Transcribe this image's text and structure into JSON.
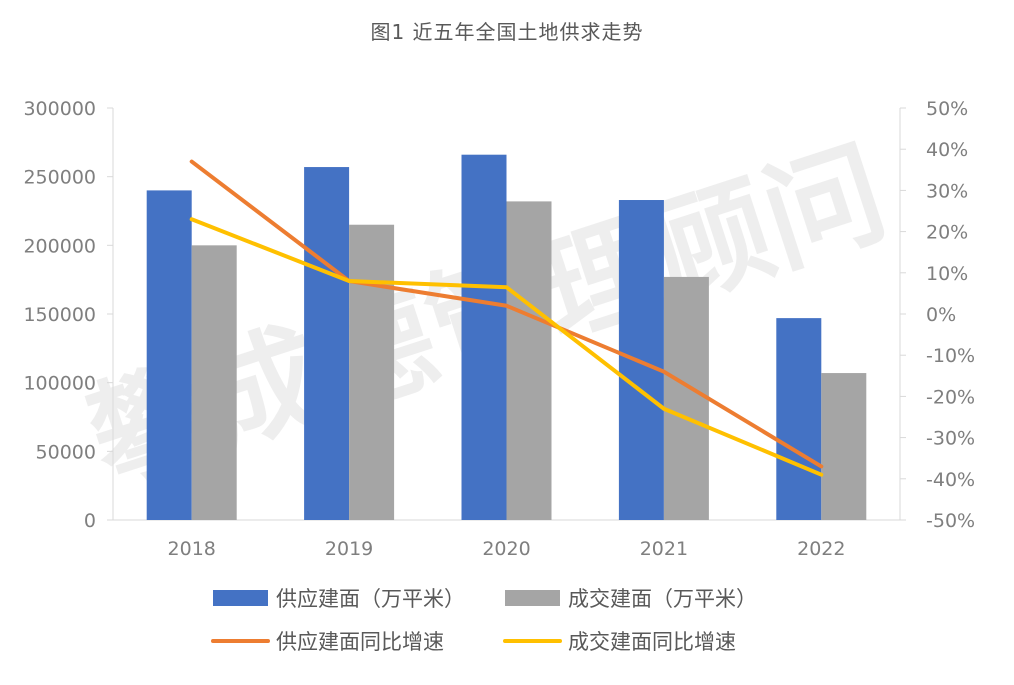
{
  "chart_data": {
    "type": "bar",
    "title": "图1 近五年全国土地供求走势",
    "categories": [
      "2018",
      "2019",
      "2020",
      "2021",
      "2022"
    ],
    "series": [
      {
        "name": "供应建面（万平米）",
        "kind": "bar",
        "axis": "left",
        "color": "#4472C4",
        "values": [
          240000,
          257000,
          266000,
          233000,
          147000
        ]
      },
      {
        "name": "成交建面（万平米）",
        "kind": "bar",
        "axis": "left",
        "color": "#A5A5A5",
        "values": [
          200000,
          215000,
          232000,
          177000,
          107000
        ]
      },
      {
        "name": "供应建面同比增速",
        "kind": "line",
        "axis": "right",
        "color": "#ED7D31",
        "values": [
          0.37,
          0.08,
          0.02,
          -0.14,
          -0.37
        ]
      },
      {
        "name": "成交建面同比增速",
        "kind": "line",
        "axis": "right",
        "color": "#FFC000",
        "values": [
          0.23,
          0.08,
          0.065,
          -0.23,
          -0.39
        ]
      }
    ],
    "left_axis": {
      "ylim": [
        0,
        300000
      ],
      "ticks": [
        "0",
        "50000",
        "100000",
        "150000",
        "200000",
        "250000",
        "300000"
      ]
    },
    "right_axis": {
      "ylim": [
        -0.5,
        0.5
      ],
      "ticks": [
        "-50%",
        "-40%",
        "-30%",
        "-20%",
        "-10%",
        "0%",
        "10%",
        "20%",
        "30%",
        "40%",
        "50%"
      ]
    },
    "legend_position": "bottom",
    "grid": false,
    "watermark": "攀成德管理顾问"
  }
}
